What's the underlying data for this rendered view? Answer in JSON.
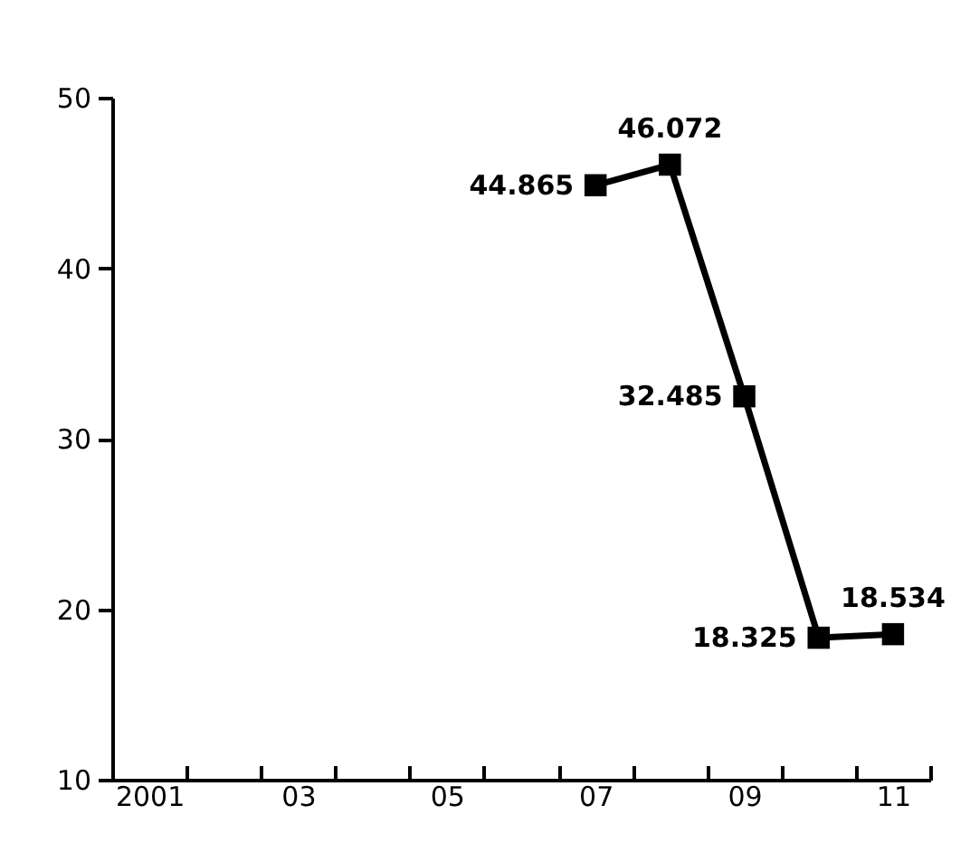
{
  "chart_data": {
    "type": "line",
    "categories": [
      "2001",
      null,
      "03",
      null,
      "05",
      null,
      "07",
      null,
      "09",
      null,
      "11"
    ],
    "series": [
      {
        "color": "#000000",
        "values": [
          null,
          null,
          null,
          null,
          null,
          null,
          44.865,
          46.072,
          32.485,
          18.325,
          18.534
        ]
      }
    ],
    "ylim": [
      10,
      50
    ],
    "yticks": [
      10,
      20,
      30,
      40,
      50
    ],
    "marker": "square",
    "line_style": "solid",
    "data_labels": true
  }
}
